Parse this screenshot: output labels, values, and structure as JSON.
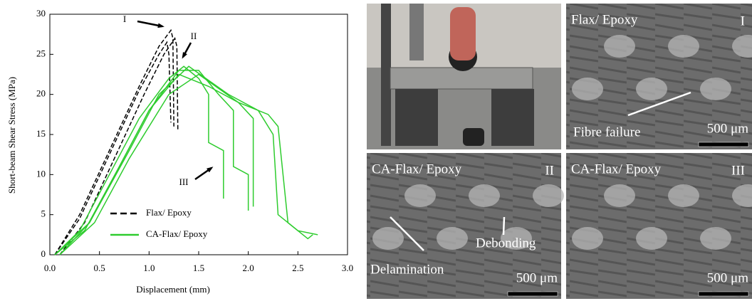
{
  "chart_data": {
    "type": "line",
    "xlabel": "Displacement (mm)",
    "ylabel": "Short-beam Shear Stress (MPa)",
    "xlim": [
      0,
      3
    ],
    "ylim": [
      0,
      30
    ],
    "xticks": [
      {
        "value": 0,
        "label": "0.0"
      },
      0.5,
      {
        "value": 1,
        "label": "1.0"
      },
      1.5,
      {
        "value": 2,
        "label": "2.0"
      },
      2.5,
      {
        "value": 3,
        "label": "3.0"
      }
    ],
    "yticks": [
      0,
      5,
      10,
      15,
      20,
      25,
      30
    ],
    "legend": "lower-left",
    "series": [
      {
        "name": "Flax/ Epoxy",
        "color": "#000000",
        "dashed": true,
        "curves": [
          {
            "x": [
              0.05,
              0.3,
              0.6,
              0.9,
              1.1,
              1.22,
              1.24,
              1.25
            ],
            "values": [
              0,
              5,
              13,
              21,
              26,
              28,
              27,
              16
            ]
          },
          {
            "x": [
              0.1,
              0.35,
              0.65,
              0.95,
              1.15,
              1.26,
              1.28,
              1.29
            ],
            "values": [
              0,
              4,
              12,
              20,
              25,
              27,
              26,
              15.5
            ]
          },
          {
            "x": [
              0.05,
              0.3,
              0.6,
              0.9,
              1.1,
              1.18,
              1.2,
              1.22
            ],
            "values": [
              0,
              4.5,
              12.5,
              20.5,
              25,
              26.5,
              25,
              16.5
            ]
          }
        ]
      },
      {
        "name": "CA-Flax/ Epoxy",
        "color": "#2ecc2e",
        "dashed": false,
        "curves": [
          {
            "x": [
              0.05,
              0.3,
              0.6,
              0.9,
              1.2,
              1.35,
              1.5,
              1.6,
              1.6,
              1.75,
              1.75
            ],
            "values": [
              0,
              3,
              10,
              17,
              22,
              23.5,
              22,
              20,
              14,
              13,
              7
            ]
          },
          {
            "x": [
              0.05,
              0.35,
              0.7,
              1.0,
              1.3,
              1.5,
              1.7,
              1.85,
              1.85,
              2.0,
              2.0
            ],
            "values": [
              0,
              3,
              11,
              18,
              23,
              23,
              20,
              18,
              11,
              10,
              5.5
            ]
          },
          {
            "x": [
              0.1,
              0.4,
              0.7,
              1.0,
              1.3,
              1.6,
              1.9,
              2.05,
              2.05
            ],
            "values": [
              0,
              4,
              11,
              18,
              22.5,
              21,
              19,
              17,
              6
            ]
          },
          {
            "x": [
              0.05,
              0.4,
              0.8,
              1.1,
              1.4,
              1.8,
              2.1,
              2.25,
              2.3,
              2.5,
              2.7
            ],
            "values": [
              0,
              4,
              13,
              20,
              23.5,
              20,
              18,
              15,
              5,
              3,
              2.5
            ]
          },
          {
            "x": [
              0.1,
              0.45,
              0.8,
              1.2,
              1.5,
              1.9,
              2.2,
              2.3,
              2.4,
              2.6,
              2.65
            ],
            "values": [
              0,
              4,
              12,
              20,
              22.5,
              19,
              17.5,
              16,
              4,
              2,
              2.5
            ]
          }
        ]
      }
    ],
    "annotations": [
      "I",
      "II",
      "III"
    ]
  },
  "panels": [
    {
      "title": "Flax/ Epoxy",
      "tag": "I",
      "notes": [
        "Fibre failure"
      ],
      "scale": "500 μm"
    },
    {
      "title": "CA-Flax/ Epoxy",
      "tag": "II",
      "notes": [
        "Delamination",
        "Debonding"
      ],
      "scale": "500 μm"
    },
    {
      "title": "CA-Flax/ Epoxy",
      "tag": "III",
      "notes": [],
      "scale": "500 μm"
    }
  ]
}
